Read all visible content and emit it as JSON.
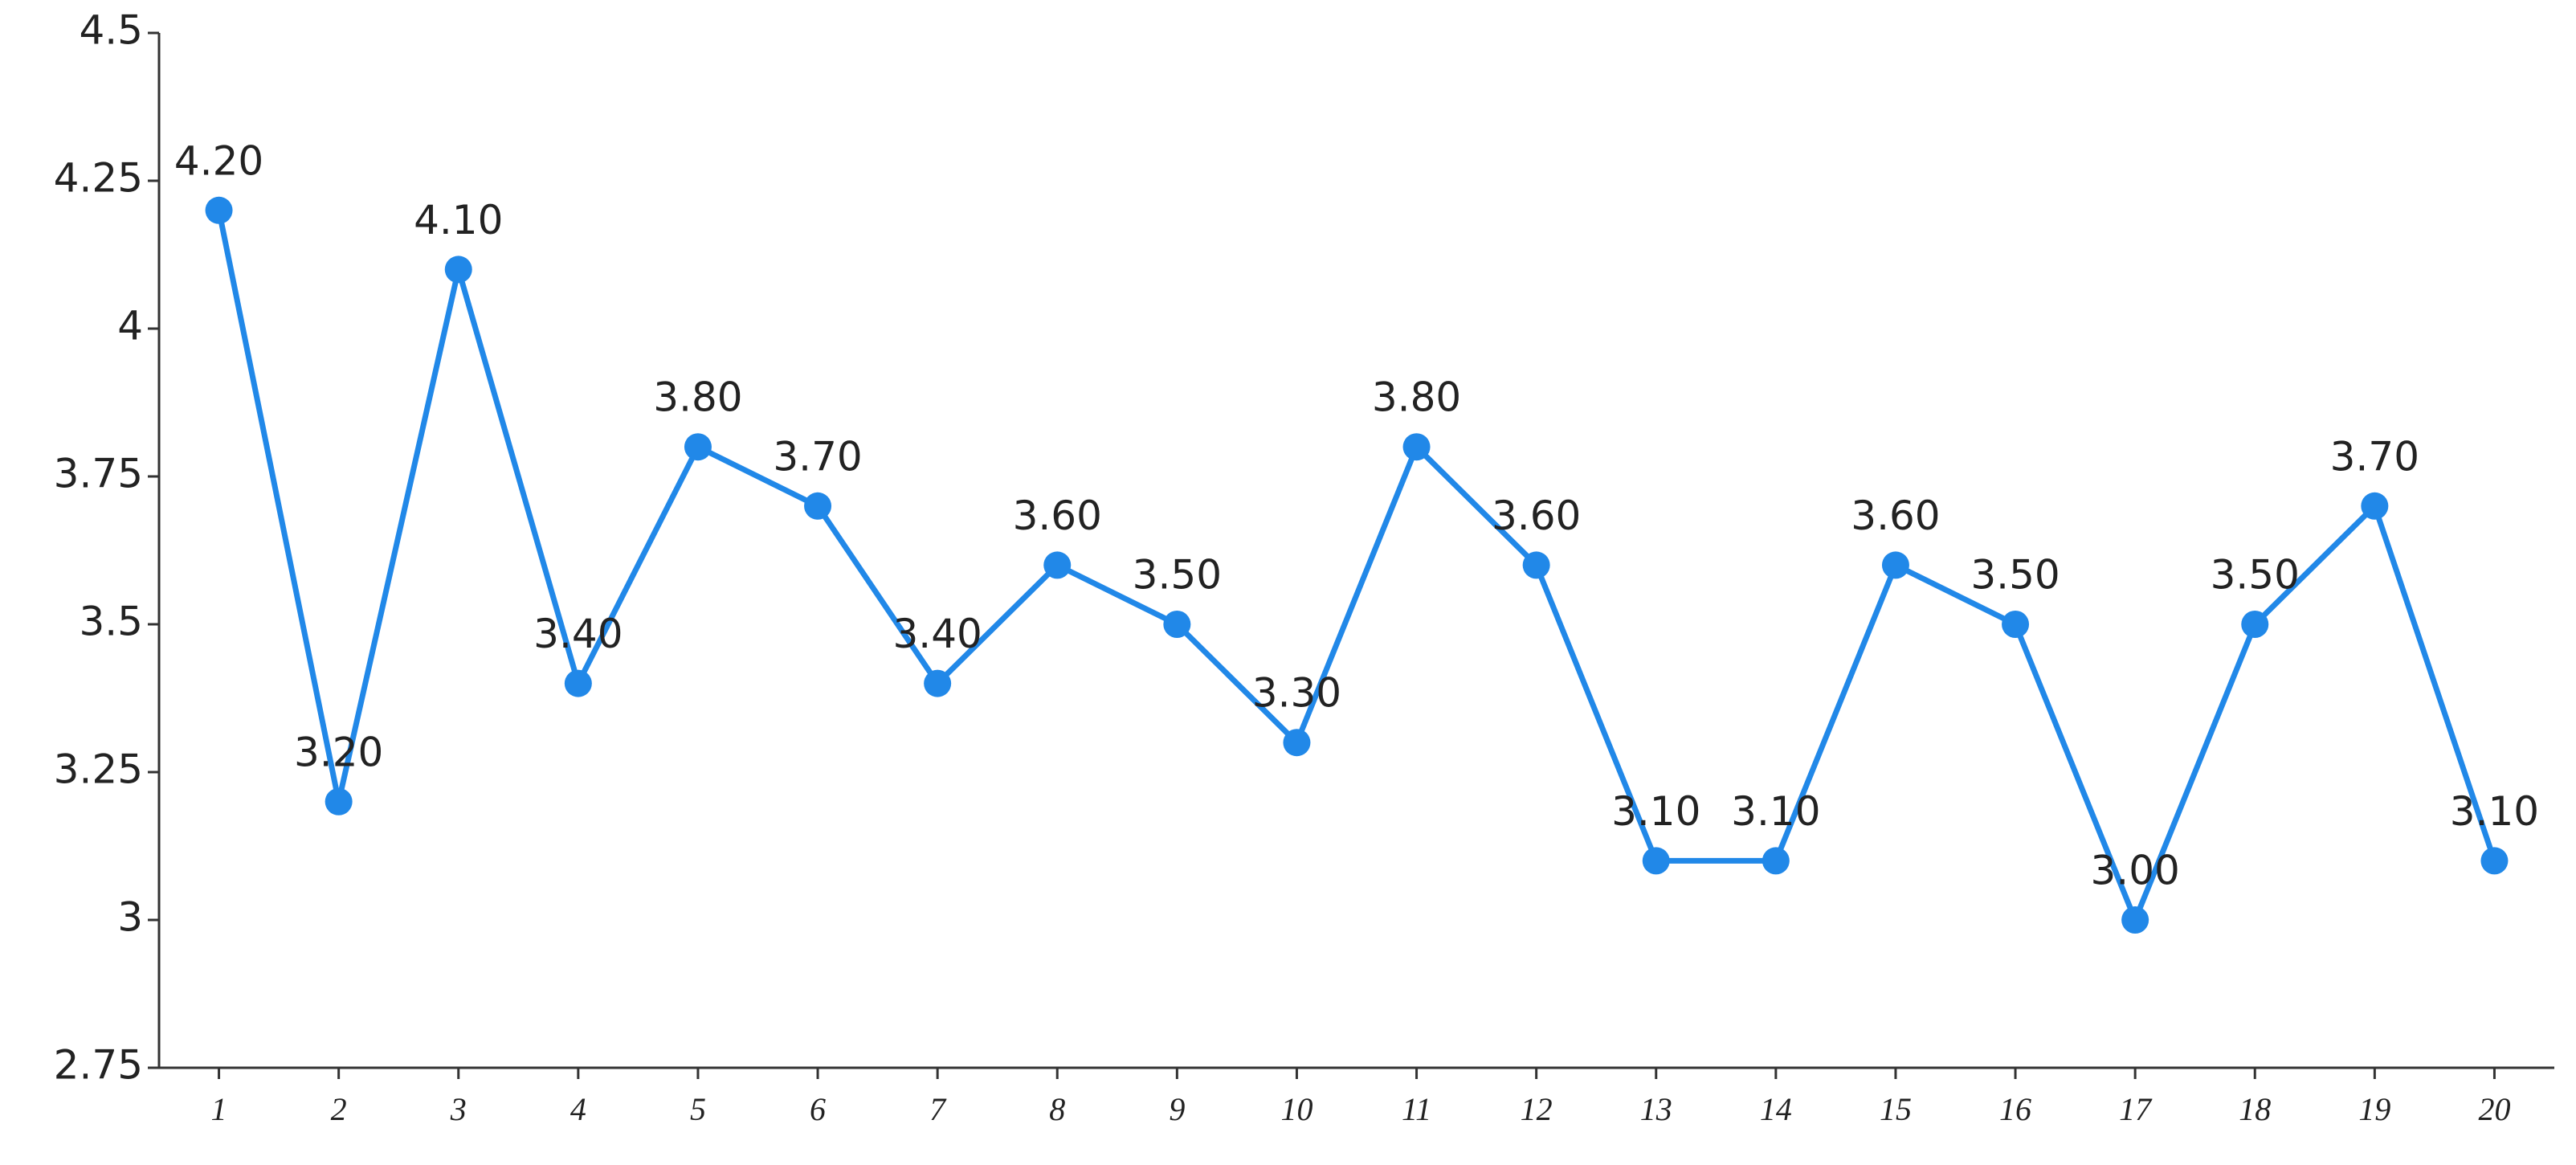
{
  "chart_data": {
    "type": "line",
    "categories": [
      "1",
      "2",
      "3",
      "4",
      "5",
      "6",
      "7",
      "8",
      "9",
      "10",
      "11",
      "12",
      "13",
      "14",
      "15",
      "16",
      "17",
      "18",
      "19",
      "20"
    ],
    "values": [
      4.2,
      3.2,
      4.1,
      3.4,
      3.8,
      3.7,
      3.4,
      3.6,
      3.5,
      3.3,
      3.8,
      3.6,
      3.1,
      3.1,
      3.6,
      3.5,
      3.0,
      3.5,
      3.7,
      3.1
    ],
    "value_labels": [
      "4.20",
      "3.20",
      "4.10",
      "3.40",
      "3.80",
      "3.70",
      "3.40",
      "3.60",
      "3.50",
      "3.30",
      "3.80",
      "3.60",
      "3.10",
      "3.10",
      "3.60",
      "3.50",
      "3.00",
      "3.50",
      "3.70",
      "3.10"
    ],
    "color": "#2188e8",
    "ylim": [
      2.75,
      4.5
    ],
    "yticks": [
      2.75,
      3,
      3.25,
      3.5,
      3.75,
      4,
      4.25,
      4.5
    ],
    "grid": false
  }
}
